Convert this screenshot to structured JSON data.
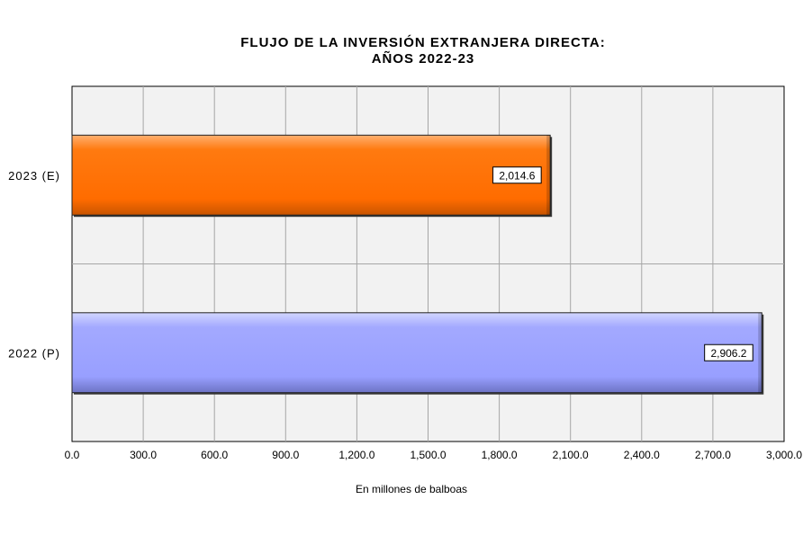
{
  "chart_data": {
    "type": "bar",
    "orientation": "horizontal",
    "title_lines": [
      "FLUJO DE LA INVERSIÓN EXTRANJERA DIRECTA:",
      "AÑOS 2022-23"
    ],
    "xlabel": "En millones de balboas",
    "xlim": [
      0,
      3000
    ],
    "xticks": [
      0,
      300,
      600,
      900,
      1200,
      1500,
      1800,
      2100,
      2400,
      2700,
      3000
    ],
    "xtick_labels": [
      "0.0",
      "300.0",
      "600.0",
      "900.0",
      "1,200.0",
      "1,500.0",
      "1,800.0",
      "2,100.0",
      "2,400.0",
      "2,700.0",
      "3,000.0"
    ],
    "categories": [
      "2023 (E)",
      "2022 (P)"
    ],
    "values": [
      2014.6,
      2906.2
    ],
    "value_labels": [
      "2,014.6",
      "2,906.2"
    ],
    "bar_colors": [
      "#ff7000",
      "#9ba2ff"
    ],
    "grid": true,
    "plot_background": "#f2f2f2",
    "grid_color": "#a6a6a6"
  }
}
